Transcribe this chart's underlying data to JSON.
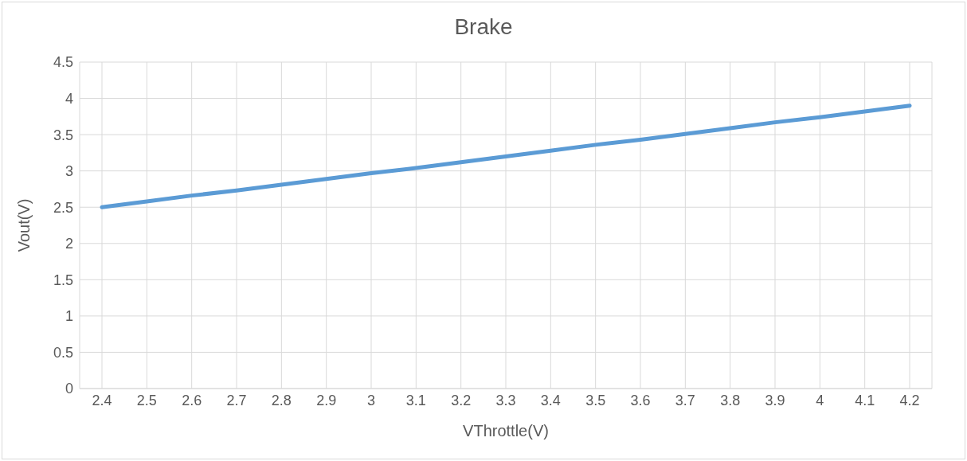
{
  "chart_data": {
    "type": "line",
    "title": "Brake",
    "xlabel": "VThrottle(V)",
    "ylabel": "Vout(V)",
    "categories": [
      "2.4",
      "2.5",
      "2.6",
      "2.7",
      "2.8",
      "2.9",
      "3",
      "3.1",
      "3.2",
      "3.3",
      "3.4",
      "3.5",
      "3.6",
      "3.7",
      "3.8",
      "3.9",
      "4",
      "4.1",
      "4.2"
    ],
    "series": [
      {
        "color": "#5b9bd5",
        "values": [
          2.5,
          2.58,
          2.66,
          2.73,
          2.81,
          2.89,
          2.97,
          3.04,
          3.12,
          3.2,
          3.28,
          3.36,
          3.43,
          3.51,
          3.59,
          3.67,
          3.74,
          3.82,
          3.9
        ]
      }
    ],
    "ylim": [
      0,
      4.5
    ],
    "yticks": [
      0,
      0.5,
      1,
      1.5,
      2,
      2.5,
      3,
      3.5,
      4,
      4.5
    ],
    "grid": true,
    "marker": "none"
  }
}
